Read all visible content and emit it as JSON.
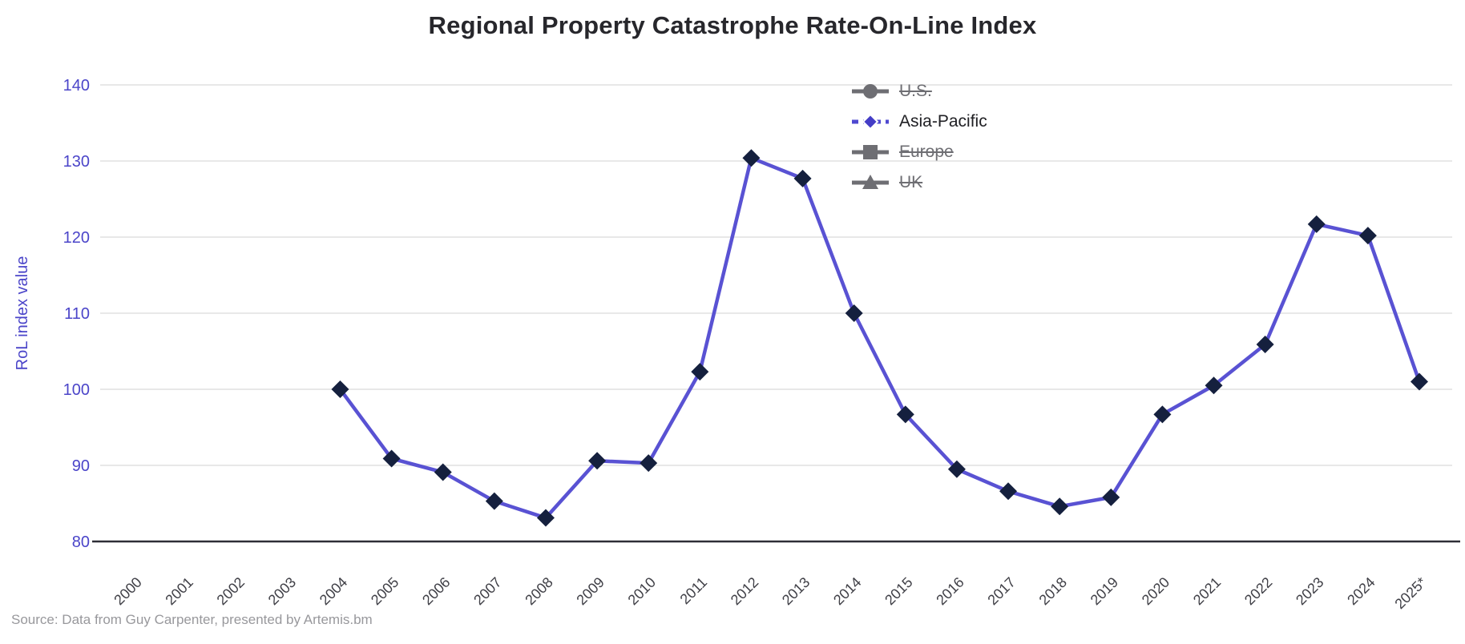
{
  "title": "Regional Property Catastrophe Rate-On-Line Index",
  "source": "Source: Data from Guy Carpenter, presented by Artemis.bm",
  "colors": {
    "series_line": "#5952d3",
    "series_marker": "#15203e",
    "legend_dash": "#4f49d0",
    "legend_disabled": "#6e6e73",
    "axis_label": "#4b45c9",
    "tick_label_x": "#3f3f46",
    "gridline": "#e8e8e8",
    "axis_line": "#2e2e36",
    "title_text": "#27272c",
    "source_text": "#98989c"
  },
  "chart_data": {
    "type": "line",
    "title": "Regional Property Catastrophe Rate-On-Line Index",
    "xlabel": "",
    "ylabel": "RoL index value",
    "ylim": [
      80,
      140
    ],
    "yticks": [
      80,
      90,
      100,
      110,
      120,
      130,
      140
    ],
    "grid": true,
    "legend_position": "top-right-inside",
    "categories": [
      "2000",
      "2001",
      "2002",
      "2003",
      "2004",
      "2005",
      "2006",
      "2007",
      "2008",
      "2009",
      "2010",
      "2011",
      "2012",
      "2013",
      "2014",
      "2015",
      "2016",
      "2017",
      "2018",
      "2019",
      "2020",
      "2021",
      "2022",
      "2023",
      "2024",
      "2025*"
    ],
    "series": [
      {
        "name": "U.S.",
        "marker": "circle",
        "visible": false,
        "values": null
      },
      {
        "name": "Asia-Pacific",
        "marker": "diamond",
        "visible": true,
        "values": [
          null,
          null,
          null,
          null,
          100,
          90.9,
          89.1,
          85.3,
          83.1,
          90.6,
          90.3,
          102.3,
          130.4,
          127.7,
          110,
          96.7,
          89.5,
          86.6,
          84.6,
          85.8,
          96.7,
          100.5,
          105.9,
          121.7,
          120.2,
          101
        ]
      },
      {
        "name": "Europe",
        "marker": "square",
        "visible": false,
        "values": null
      },
      {
        "name": "UK",
        "marker": "triangle",
        "visible": false,
        "values": null
      }
    ]
  }
}
